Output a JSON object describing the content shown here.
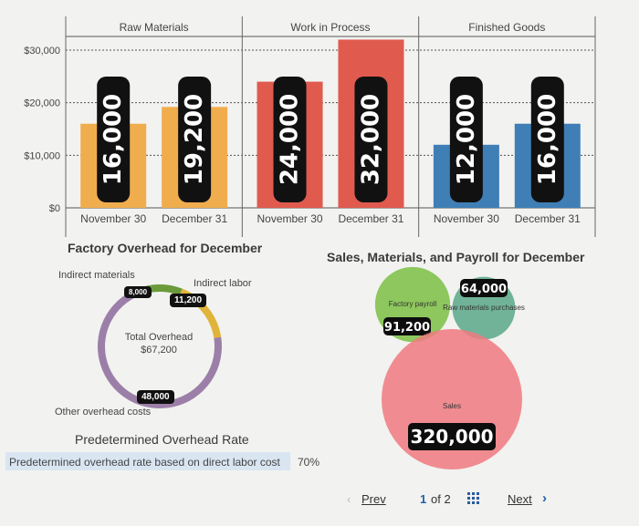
{
  "chart_data": [
    {
      "type": "bar",
      "groups": [
        {
          "name": "Raw Materials",
          "categories": [
            "November 30",
            "December 31"
          ],
          "values": [
            16000,
            19200
          ],
          "color": "#f0ad4e"
        },
        {
          "name": "Work in Process",
          "categories": [
            "November 30",
            "December 31"
          ],
          "values": [
            24000,
            32000
          ],
          "color": "#e05a4e"
        },
        {
          "name": "Finished Goods",
          "categories": [
            "November 30",
            "December 31"
          ],
          "values": [
            12000,
            16000
          ],
          "color": "#3f7fb6"
        }
      ],
      "value_labels": [
        "16,000",
        "19,200",
        "24,000",
        "32,000",
        "12,000",
        "16,000"
      ],
      "yticks": [
        "$30,000",
        "$20,000",
        "$10,000",
        "$0"
      ],
      "ytick_values": [
        30000,
        20000,
        10000,
        0
      ],
      "ylim": [
        0,
        30000
      ],
      "grid": true
    },
    {
      "type": "pie",
      "title": "Factory Overhead for December",
      "slices": [
        {
          "name": "Indirect materials",
          "value": 8000,
          "label": "8,000",
          "color": "#6a9a3a"
        },
        {
          "name": "Indirect labor",
          "value": 11200,
          "label": "11,200",
          "color": "#e0b43a"
        },
        {
          "name": "Other overhead costs",
          "value": 48000,
          "label": "48,000",
          "color": "#9c7fa8"
        }
      ],
      "center_label": "Total Overhead",
      "center_value": "$67,200"
    },
    {
      "type": "scatter",
      "title": "Sales, Materials, and Payroll for December",
      "bubbles": [
        {
          "name": "Factory payroll",
          "value": 91200,
          "label": "91,200",
          "color": "#7bc043"
        },
        {
          "name": "Raw materials purchases",
          "value": 64000,
          "label": "64,000",
          "color": "#5aa88a"
        },
        {
          "name": "Sales",
          "value": 320000,
          "label": "320,000",
          "color": "#f07a80"
        }
      ]
    }
  ],
  "rate": {
    "title": "Predetermined Overhead Rate",
    "label": "Predetermined overhead rate based on direct labor cost",
    "value": "70%"
  },
  "pager": {
    "prev": "Prev",
    "page": "1",
    "of": "of 2",
    "next": "Next"
  }
}
